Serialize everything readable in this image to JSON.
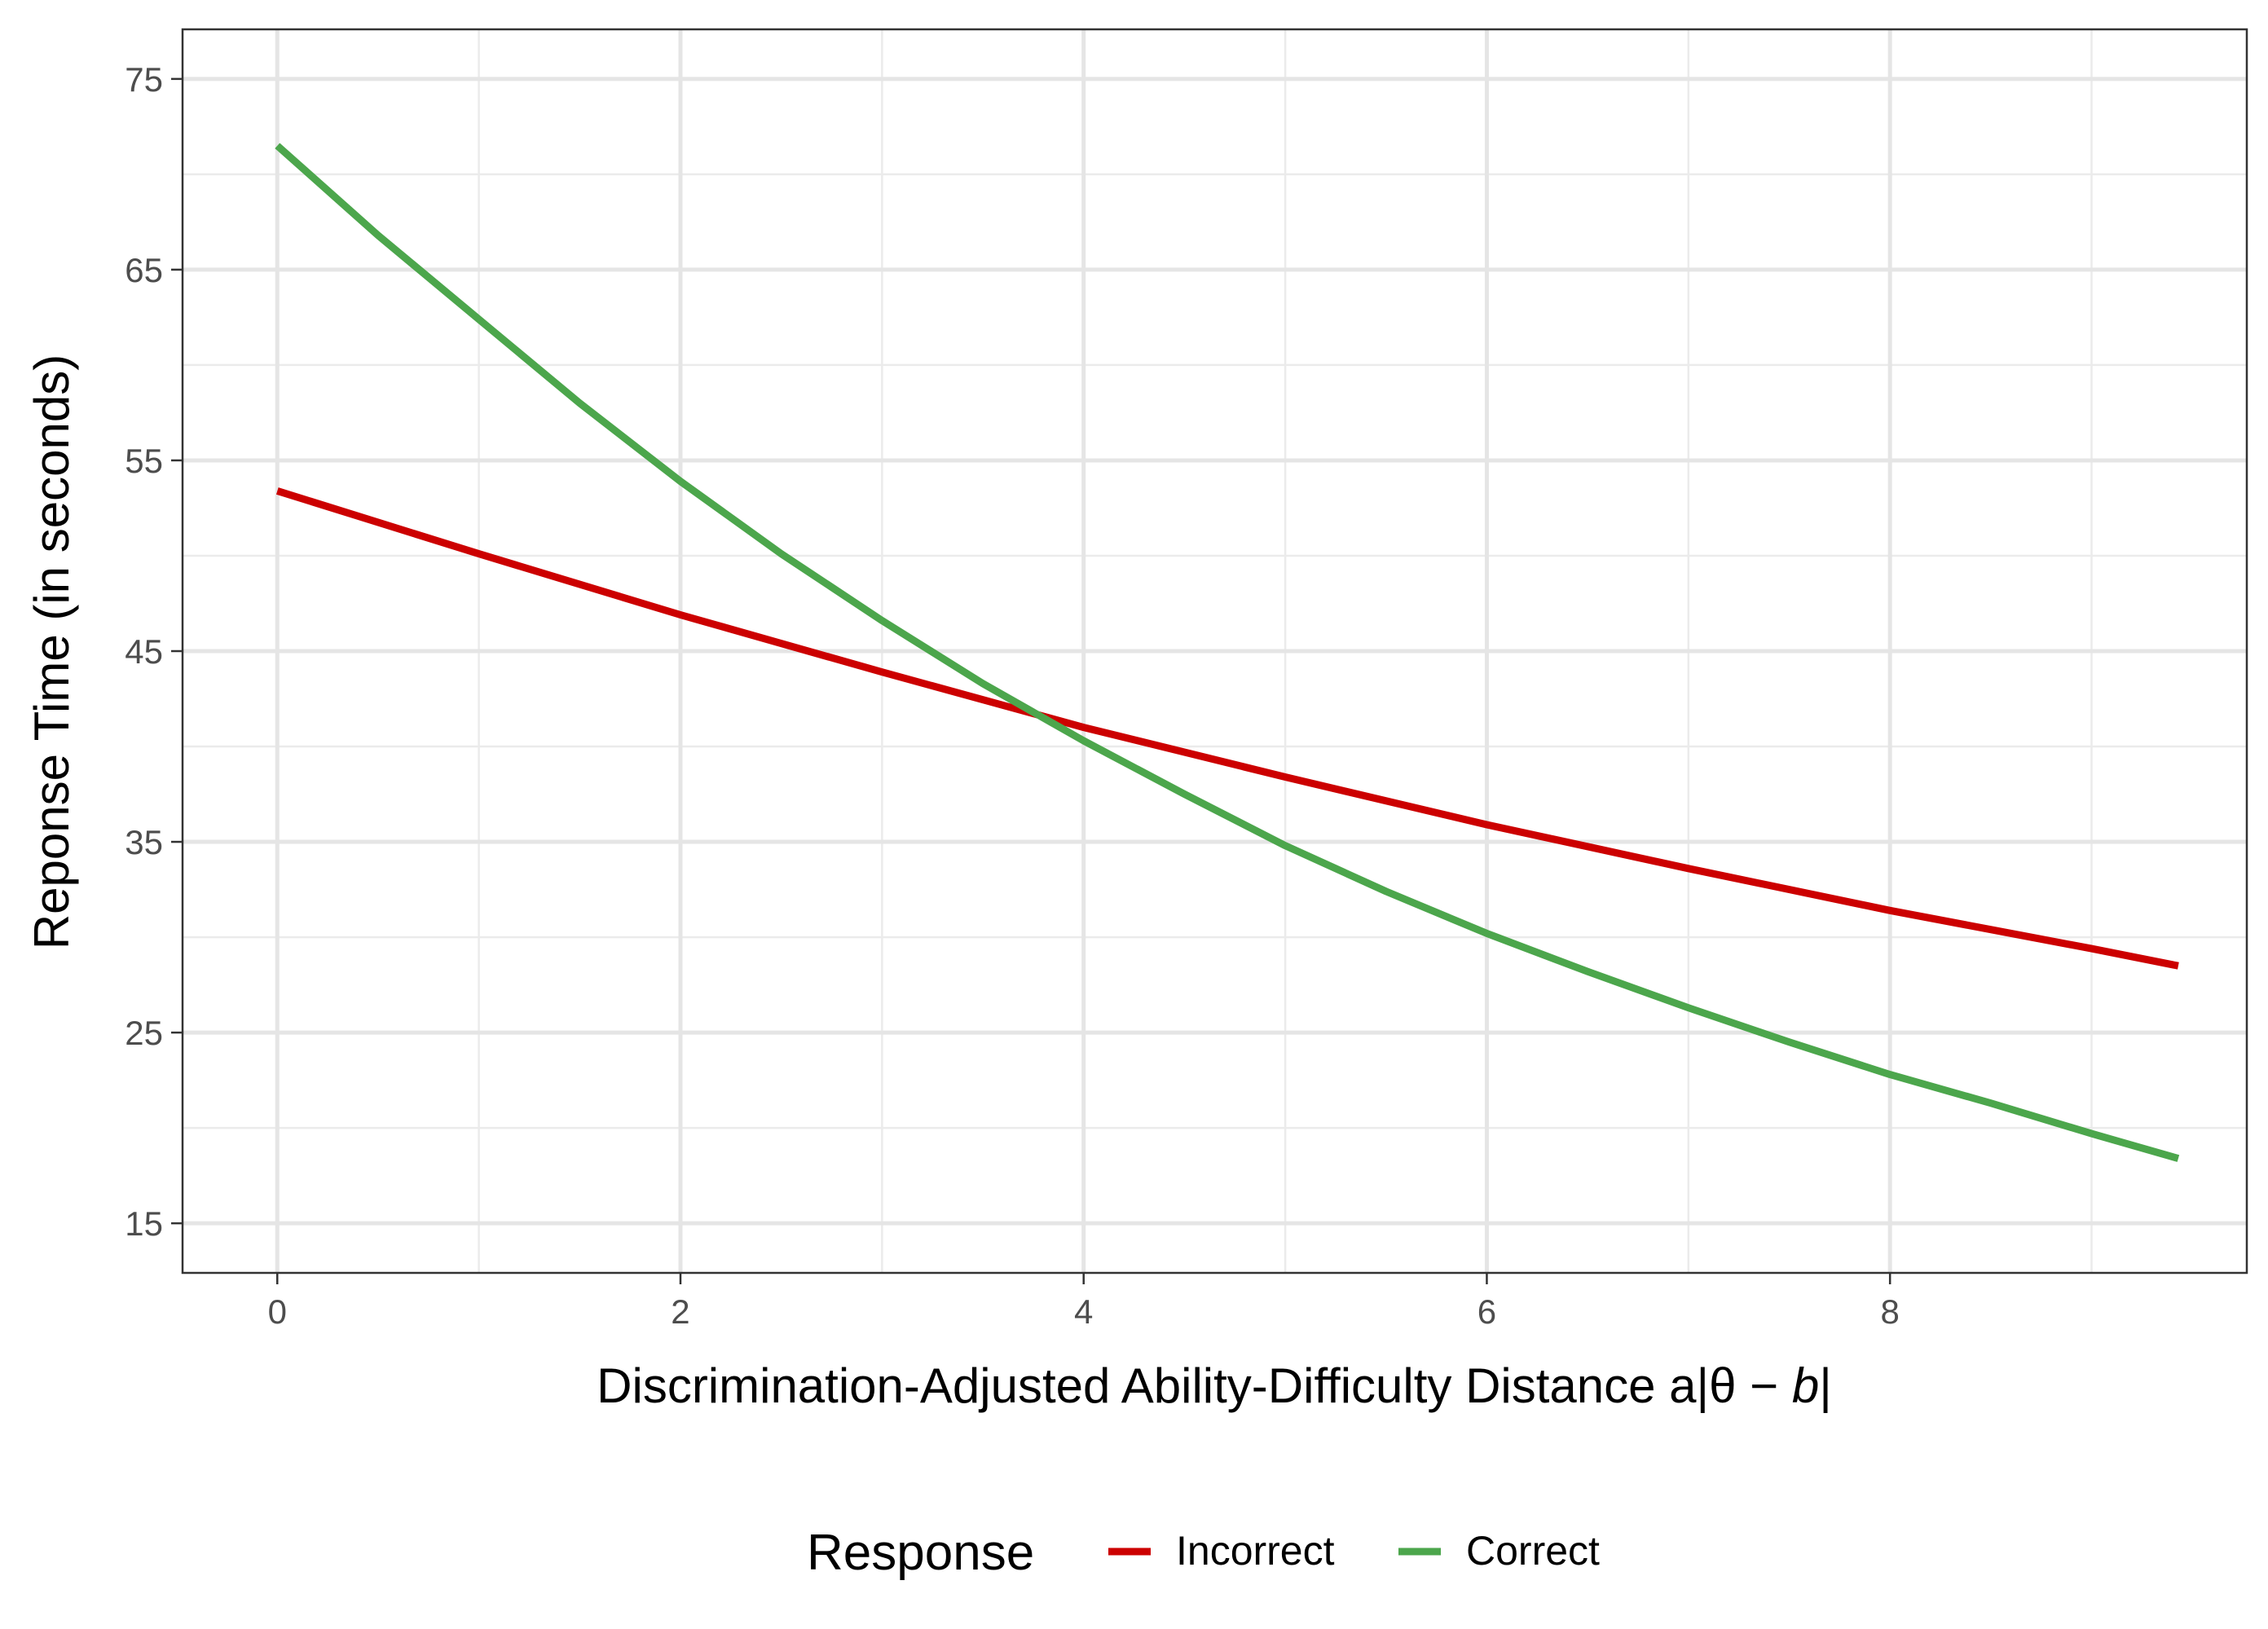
{
  "chart_data": {
    "type": "line",
    "title": "",
    "xlabel_main": "Discrimination-Adjusted Ability-Difficulty Distance a|θ − ",
    "xlabel_italic": "b",
    "xlabel_end": "|",
    "ylabel": "Reponse Time (in seconds)",
    "xlim": [
      -0.47,
      9.77
    ],
    "ylim": [
      12.4,
      77.6
    ],
    "x_ticks": [
      0,
      2,
      4,
      6,
      8
    ],
    "x_tick_labels": [
      "0",
      "2",
      "4",
      "6",
      "8"
    ],
    "x_minor_ticks": [
      1,
      3,
      5,
      7,
      9
    ],
    "y_ticks": [
      15,
      25,
      35,
      45,
      55,
      65,
      75
    ],
    "y_tick_labels": [
      "15",
      "25",
      "35",
      "45",
      "55",
      "65",
      "75"
    ],
    "y_minor_ticks": [
      20,
      30,
      40,
      50,
      60,
      70
    ],
    "grid": true,
    "legend": {
      "title": "Response",
      "placement": "bottom"
    },
    "series": [
      {
        "name": "Incorrect",
        "color": "#cc0000",
        "x": [
          0,
          1,
          2,
          3,
          4,
          5,
          6,
          7,
          8,
          9,
          9.43
        ],
        "y": [
          53.4,
          50.1,
          46.9,
          43.9,
          41.0,
          38.4,
          35.9,
          33.6,
          31.4,
          29.4,
          28.5
        ]
      },
      {
        "name": "Correct",
        "color": "#4ca64c",
        "x": [
          0,
          0.5,
          1,
          1.5,
          2,
          2.5,
          3,
          3.5,
          4,
          4.5,
          5,
          5.5,
          6,
          6.5,
          7,
          7.5,
          8,
          8.5,
          9,
          9.43
        ],
        "y": [
          71.5,
          66.8,
          62.4,
          58.0,
          53.9,
          50.1,
          46.6,
          43.3,
          40.3,
          37.5,
          34.8,
          32.4,
          30.2,
          28.2,
          26.3,
          24.5,
          22.8,
          21.3,
          19.7,
          18.4
        ]
      }
    ]
  }
}
